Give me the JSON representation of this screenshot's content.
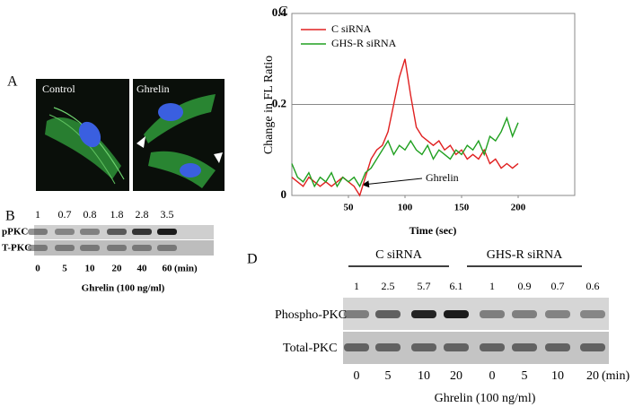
{
  "panel_a": {
    "label": "A",
    "images": [
      "Control",
      "Ghrelin"
    ]
  },
  "panel_b": {
    "label": "B",
    "ratios": [
      1,
      0.7,
      0.8,
      1.8,
      2.8,
      3.5
    ],
    "rows": [
      "pPKC",
      "T-PKC"
    ],
    "times": [
      0,
      5,
      10,
      20,
      40,
      60
    ],
    "time_unit": "(min)",
    "xlabel": "Ghrelin (100 ng/ml)"
  },
  "chart_data": {
    "type": "line",
    "label": "C",
    "xlabel": "Time (sec)",
    "ylabel": "Change in FL Ratio",
    "annotation": "Ghrelin",
    "xlim": [
      0,
      250
    ],
    "xticks": [
      50,
      100,
      150,
      200
    ],
    "ylim": [
      0,
      0.4
    ],
    "yticks": [
      0,
      0.2,
      0.4
    ],
    "grid": true,
    "legend": "upper left",
    "x": [
      0,
      5,
      10,
      15,
      20,
      25,
      30,
      35,
      40,
      45,
      50,
      55,
      60,
      65,
      70,
      75,
      80,
      85,
      90,
      95,
      100,
      105,
      110,
      115,
      120,
      125,
      130,
      135,
      140,
      145,
      150,
      155,
      160,
      165,
      170,
      175,
      180,
      185,
      190,
      195,
      200
    ],
    "series": [
      {
        "name": "C siRNA",
        "color": "#e02020",
        "values": [
          0.04,
          0.03,
          0.02,
          0.04,
          0.03,
          0.02,
          0.03,
          0.02,
          0.03,
          0.04,
          0.03,
          0.02,
          0.0,
          0.04,
          0.08,
          0.1,
          0.11,
          0.14,
          0.2,
          0.26,
          0.3,
          0.22,
          0.15,
          0.13,
          0.12,
          0.11,
          0.12,
          0.1,
          0.11,
          0.09,
          0.1,
          0.08,
          0.09,
          0.08,
          0.1,
          0.07,
          0.08,
          0.06,
          0.07,
          0.06,
          0.07
        ]
      },
      {
        "name": "GHS-R siRNA",
        "color": "#20a020",
        "values": [
          0.07,
          0.04,
          0.03,
          0.05,
          0.02,
          0.04,
          0.03,
          0.05,
          0.02,
          0.04,
          0.03,
          0.04,
          0.02,
          0.05,
          0.06,
          0.08,
          0.1,
          0.12,
          0.09,
          0.11,
          0.1,
          0.12,
          0.1,
          0.09,
          0.11,
          0.08,
          0.1,
          0.09,
          0.08,
          0.1,
          0.09,
          0.11,
          0.1,
          0.12,
          0.09,
          0.13,
          0.12,
          0.14,
          0.17,
          0.13,
          0.16
        ]
      }
    ]
  },
  "panel_d": {
    "label": "D",
    "groups": [
      "C siRNA",
      "GHS-R siRNA"
    ],
    "ratios": [
      1,
      2.5,
      5.7,
      6.1,
      1,
      0.9,
      0.7,
      0.6
    ],
    "rows": [
      "Phospho-PKC",
      "Total-PKC"
    ],
    "times": [
      0,
      5,
      10,
      20,
      0,
      5,
      10,
      20
    ],
    "time_unit": "(min)",
    "xlabel": "Ghrelin (100 ng/ml)"
  }
}
